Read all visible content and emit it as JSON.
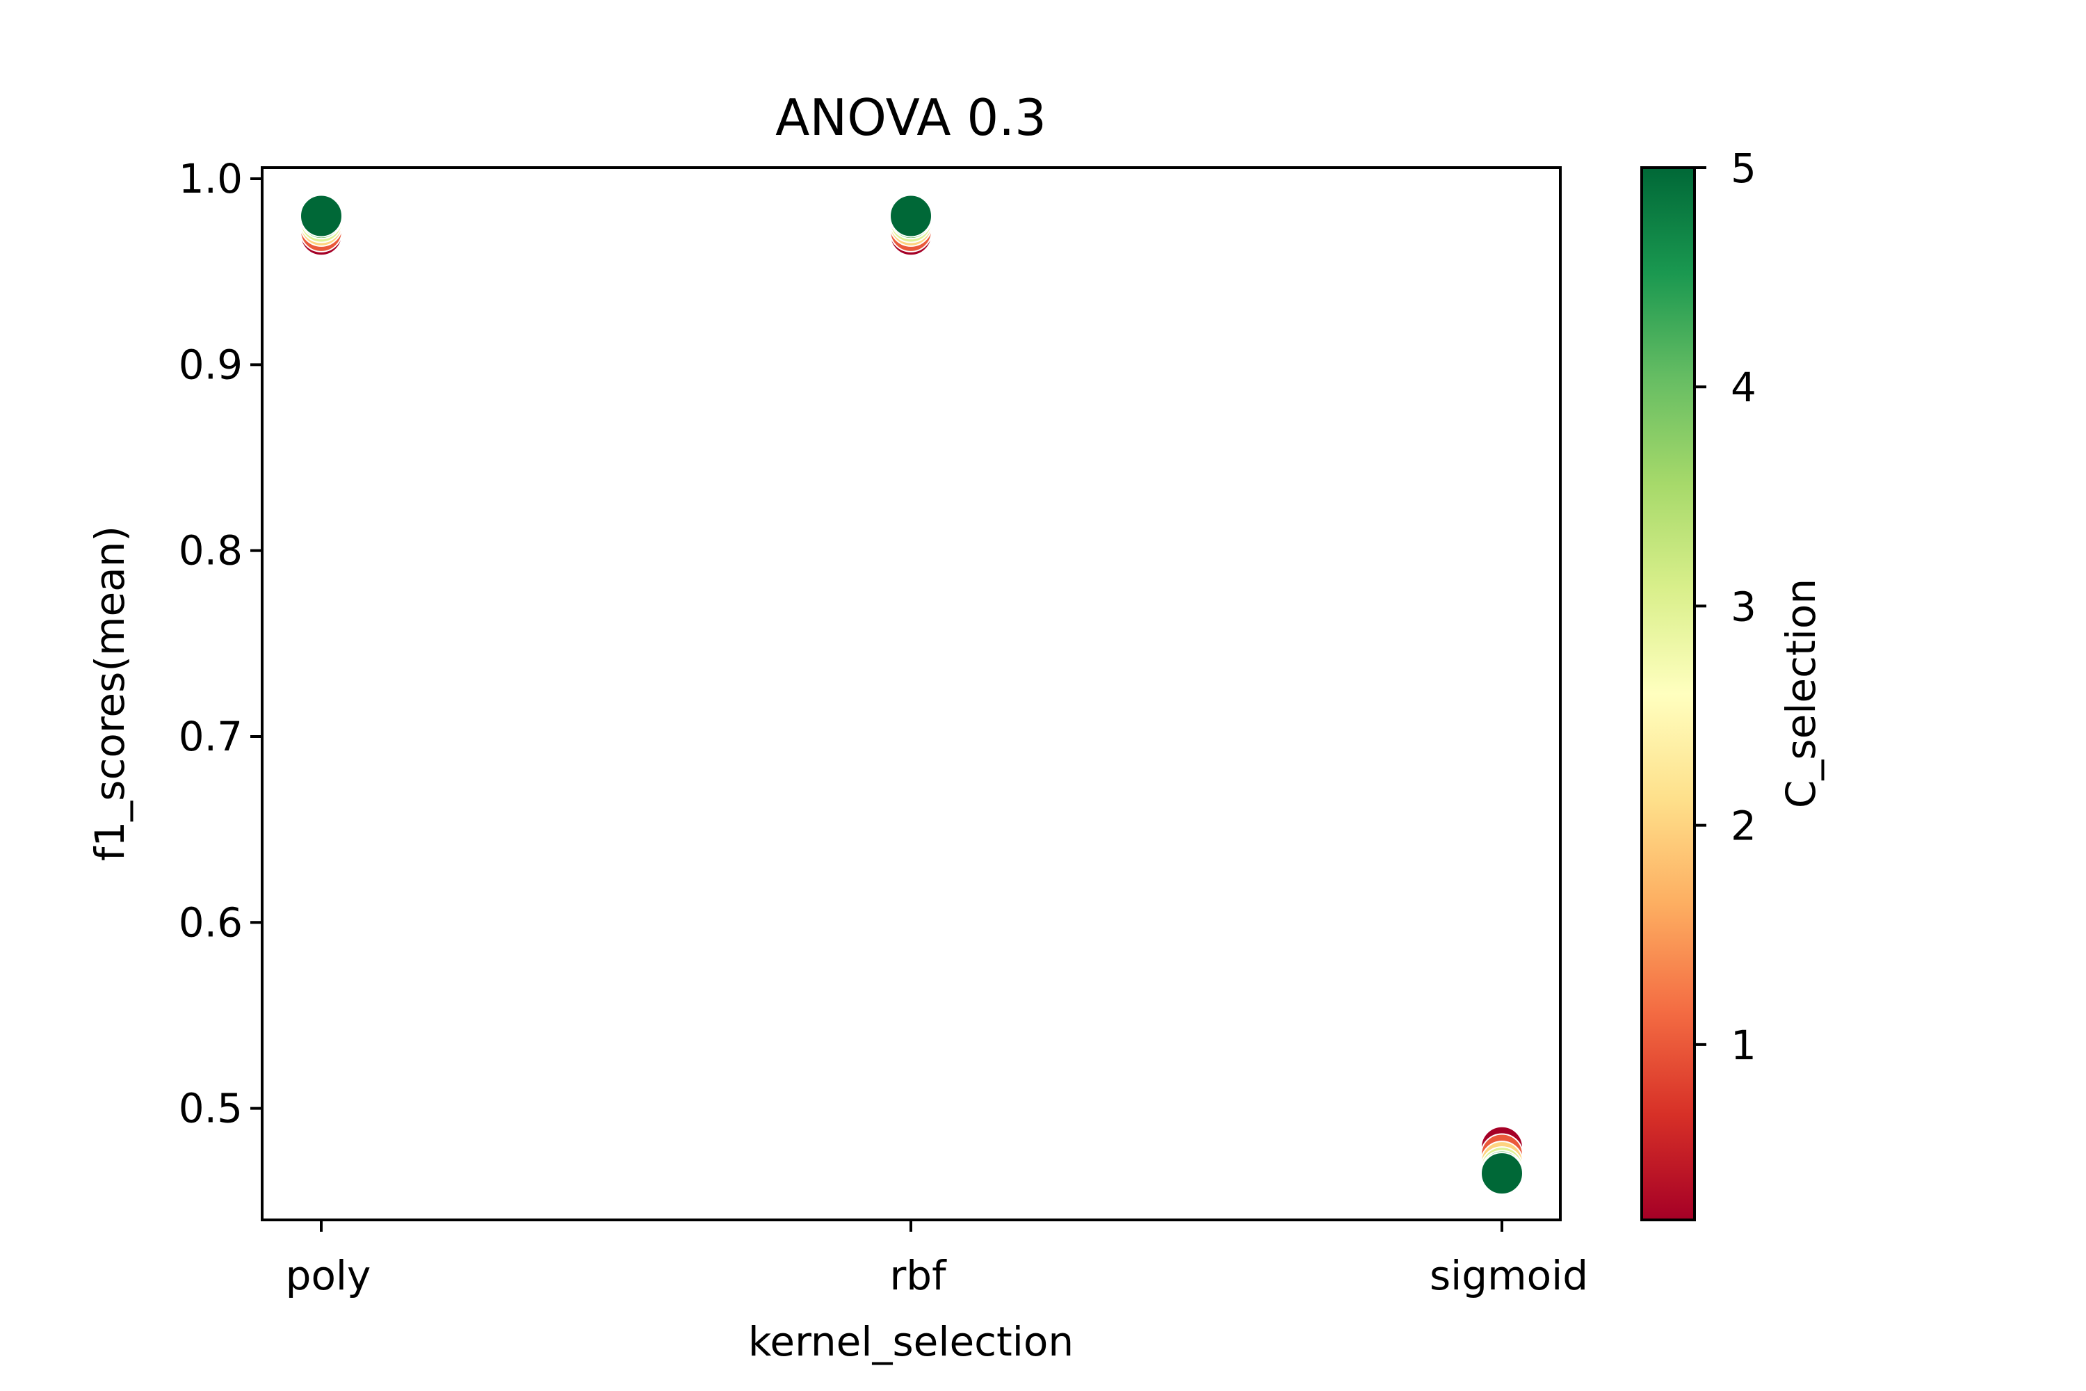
{
  "chart_data": {
    "type": "scatter",
    "title": "ANOVA 0.3",
    "xlabel": "kernel_selection",
    "ylabel": "f1_scores(mean)",
    "categories": [
      "poly",
      "rbf",
      "sigmoid"
    ],
    "ylim": [
      0.44,
      1.006
    ],
    "yticks": [
      "0.5",
      "0.6",
      "0.7",
      "0.8",
      "0.9",
      "1.0"
    ],
    "grid": false,
    "points": [
      {
        "category": "poly",
        "C": 0.2,
        "y": 0.97
      },
      {
        "category": "poly",
        "C": 1,
        "y": 0.972
      },
      {
        "category": "poly",
        "C": 2,
        "y": 0.975
      },
      {
        "category": "poly",
        "C": 3,
        "y": 0.977
      },
      {
        "category": "poly",
        "C": 4,
        "y": 0.979
      },
      {
        "category": "poly",
        "C": 5,
        "y": 0.98
      },
      {
        "category": "rbf",
        "C": 0.2,
        "y": 0.97
      },
      {
        "category": "rbf",
        "C": 1,
        "y": 0.972
      },
      {
        "category": "rbf",
        "C": 2,
        "y": 0.975
      },
      {
        "category": "rbf",
        "C": 3,
        "y": 0.977
      },
      {
        "category": "rbf",
        "C": 4,
        "y": 0.979
      },
      {
        "category": "rbf",
        "C": 5,
        "y": 0.98
      },
      {
        "category": "sigmoid",
        "C": 0.2,
        "y": 0.479
      },
      {
        "category": "sigmoid",
        "C": 1,
        "y": 0.475
      },
      {
        "category": "sigmoid",
        "C": 2,
        "y": 0.471
      },
      {
        "category": "sigmoid",
        "C": 3,
        "y": 0.468
      },
      {
        "category": "sigmoid",
        "C": 4,
        "y": 0.466
      },
      {
        "category": "sigmoid",
        "C": 5,
        "y": 0.465
      }
    ],
    "colorbar": {
      "label": "C_selection",
      "range": [
        0.2,
        5
      ],
      "ticks": [
        "1",
        "2",
        "3",
        "4",
        "5"
      ],
      "colormap": "RdYlGn",
      "colors": [
        "#a50026",
        "#d73027",
        "#f46d43",
        "#fdae61",
        "#fee08b",
        "#ffffbf",
        "#d9ef8b",
        "#a6d96a",
        "#66bd63",
        "#1a9850",
        "#006837"
      ]
    }
  }
}
